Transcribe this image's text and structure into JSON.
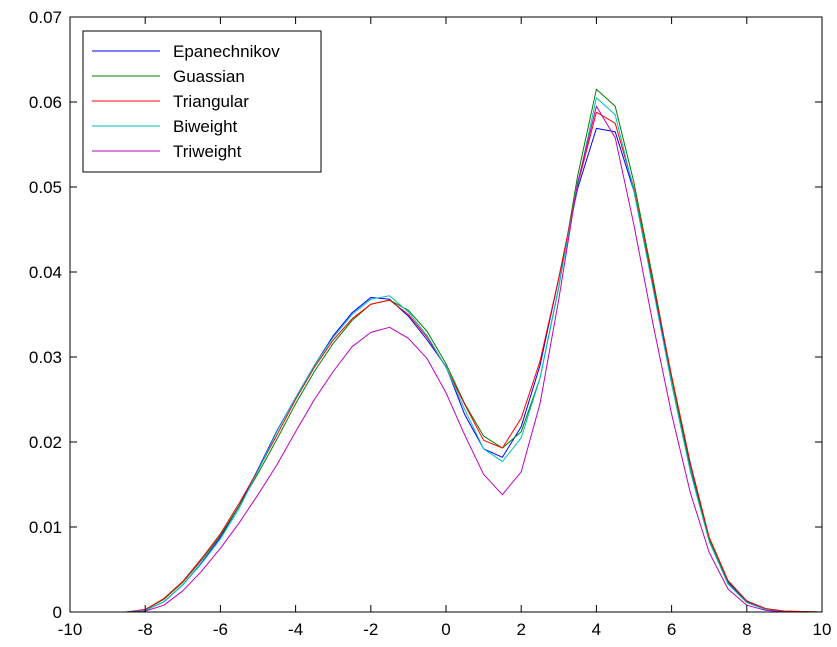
{
  "chart_data": {
    "type": "line",
    "title": "",
    "xlabel": "",
    "ylabel": "",
    "xlim": [
      -10,
      10
    ],
    "ylim": [
      0,
      0.07
    ],
    "grid": false,
    "legend_position": "top-left",
    "x_ticks": [
      -10,
      -8,
      -6,
      -4,
      -2,
      0,
      2,
      4,
      6,
      8,
      10
    ],
    "x_tick_labels": [
      "-10",
      "-8",
      "-6",
      "-4",
      "-2",
      "0",
      "2",
      "4",
      "6",
      "8",
      "10"
    ],
    "y_ticks": [
      0,
      0.01,
      0.02,
      0.03,
      0.04,
      0.05,
      0.06,
      0.07
    ],
    "y_tick_labels": [
      "0",
      "0.01",
      "0.02",
      "0.03",
      "0.04",
      "0.05",
      "0.06",
      "0.07"
    ],
    "x": [
      -10,
      -9,
      -8.5,
      -8,
      -7.5,
      -7,
      -6.5,
      -6,
      -5.5,
      -5,
      -4.5,
      -4,
      -3.5,
      -3,
      -2.5,
      -2,
      -1.5,
      -1,
      -0.5,
      0,
      0.5,
      1,
      1.5,
      2,
      2.5,
      3,
      3.5,
      4,
      4.5,
      5,
      5.5,
      6,
      6.5,
      7,
      7.5,
      8,
      8.5,
      9,
      10
    ],
    "series": [
      {
        "name": "Epanechnikov",
        "color": "#0000ff",
        "values": [
          0,
          0,
          0,
          0.0002,
          0.0012,
          0.0032,
          0.0058,
          0.0088,
          0.0125,
          0.0168,
          0.0213,
          0.0252,
          0.029,
          0.0325,
          0.0352,
          0.037,
          0.0368,
          0.0348,
          0.032,
          0.0289,
          0.0232,
          0.0192,
          0.0182,
          0.0218,
          0.029,
          0.0393,
          0.0498,
          0.0569,
          0.0565,
          0.0495,
          0.0385,
          0.0275,
          0.0174,
          0.0085,
          0.0035,
          0.0012,
          0.0003,
          0,
          0
        ]
      },
      {
        "name": "Guassian",
        "color": "#008000",
        "values": [
          0,
          0,
          0,
          0.0003,
          0.0015,
          0.0035,
          0.0061,
          0.009,
          0.0125,
          0.0163,
          0.0203,
          0.0245,
          0.0283,
          0.0316,
          0.0343,
          0.0362,
          0.0367,
          0.0355,
          0.033,
          0.0292,
          0.0245,
          0.0207,
          0.0193,
          0.0212,
          0.0275,
          0.0382,
          0.0513,
          0.0615,
          0.0595,
          0.0505,
          0.0393,
          0.0275,
          0.0168,
          0.0085,
          0.0036,
          0.0013,
          0.0004,
          0.0001,
          0
        ]
      },
      {
        "name": "Triangular",
        "color": "#ff0000",
        "values": [
          0,
          0,
          0,
          0.0003,
          0.0016,
          0.0036,
          0.0063,
          0.0092,
          0.0128,
          0.0167,
          0.0208,
          0.025,
          0.0288,
          0.032,
          0.0345,
          0.0362,
          0.0367,
          0.035,
          0.0323,
          0.0288,
          0.0244,
          0.0202,
          0.0193,
          0.0228,
          0.0295,
          0.0393,
          0.0502,
          0.0588,
          0.0575,
          0.0498,
          0.0388,
          0.0278,
          0.0175,
          0.0088,
          0.0037,
          0.0013,
          0.0004,
          0.0001,
          0
        ]
      },
      {
        "name": "Biweight",
        "color": "#00bfbf",
        "values": [
          0,
          0,
          0,
          0.0002,
          0.0012,
          0.0032,
          0.0057,
          0.0086,
          0.0122,
          0.0166,
          0.0212,
          0.0252,
          0.029,
          0.0323,
          0.035,
          0.0368,
          0.0372,
          0.0353,
          0.0325,
          0.0288,
          0.0238,
          0.0192,
          0.0177,
          0.0205,
          0.0275,
          0.0383,
          0.0502,
          0.0605,
          0.0585,
          0.0495,
          0.0382,
          0.0268,
          0.0165,
          0.0083,
          0.0033,
          0.0011,
          0.0003,
          0,
          0
        ]
      },
      {
        "name": "Triweight",
        "color": "#bf00bf",
        "values": [
          0,
          0,
          0,
          0.0001,
          0.0008,
          0.0025,
          0.0048,
          0.0075,
          0.0105,
          0.0138,
          0.0173,
          0.0212,
          0.025,
          0.0283,
          0.0312,
          0.0329,
          0.0335,
          0.0322,
          0.0298,
          0.0258,
          0.0208,
          0.0162,
          0.0138,
          0.0165,
          0.0245,
          0.0368,
          0.0505,
          0.0595,
          0.0558,
          0.0455,
          0.034,
          0.0233,
          0.014,
          0.007,
          0.0027,
          0.0008,
          0.0002,
          0,
          0
        ]
      }
    ]
  }
}
